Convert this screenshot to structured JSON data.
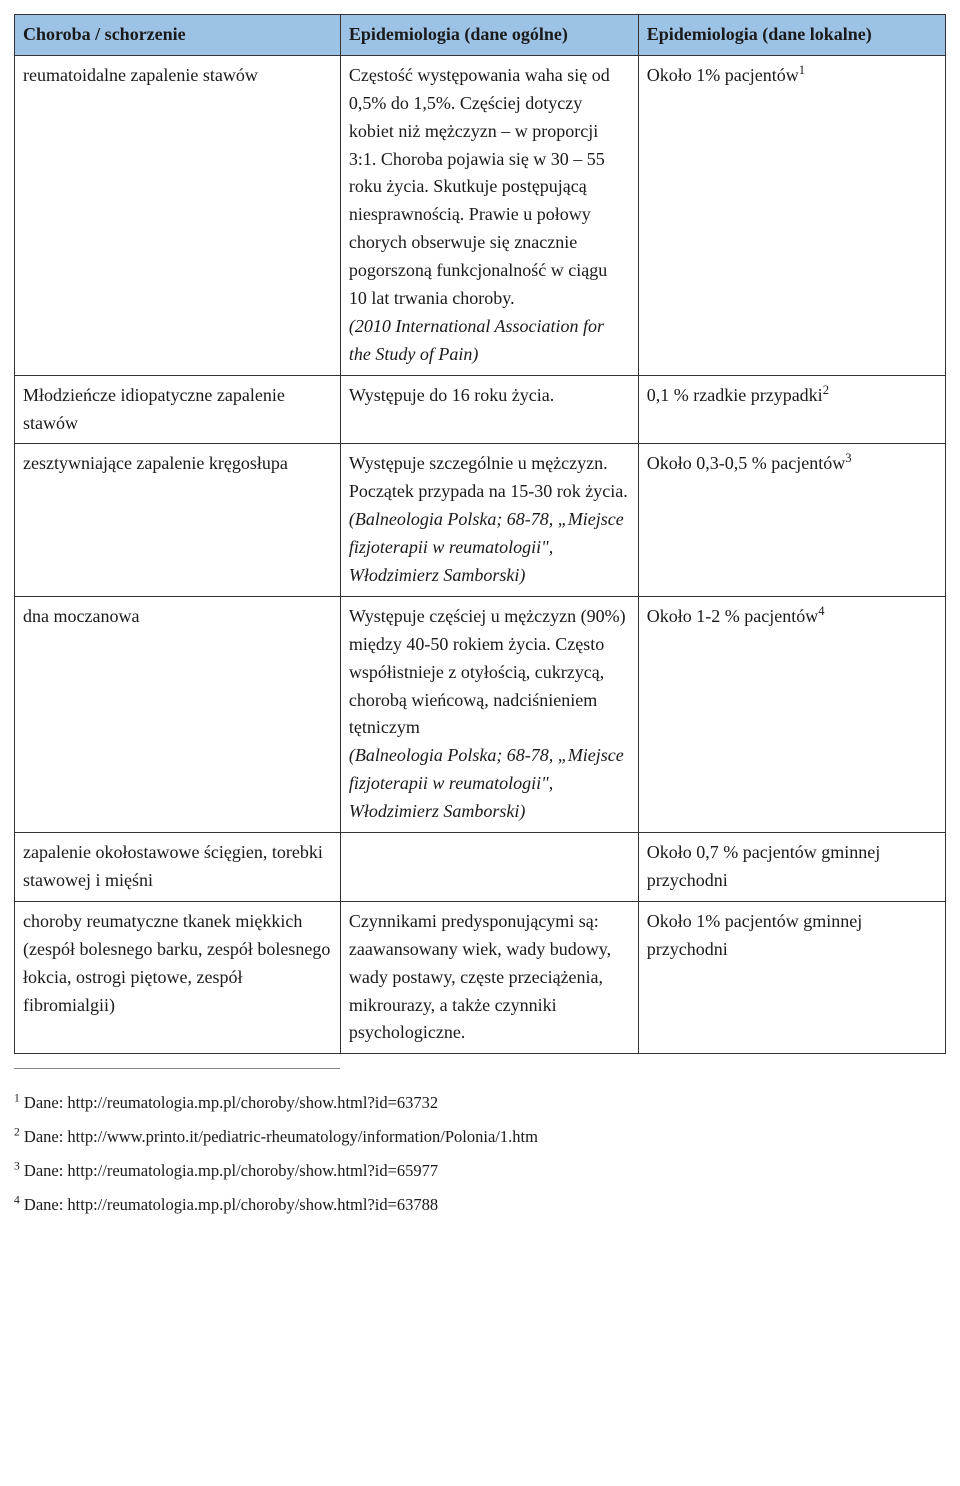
{
  "table": {
    "header_bg": "#9cc2e5",
    "col_widths": [
      "35%",
      "32%",
      "33%"
    ],
    "columns": [
      "Choroba / schorzenie",
      "Epidemiologia (dane ogólne)",
      "Epidemiologia (dane lokalne)"
    ],
    "rows": [
      {
        "c0": "reumatoidalne zapalenie stawów",
        "c1_main": "Częstość występowania waha się od 0,5% do 1,5%. Częściej dotyczy kobiet niż mężczyzn – w proporcji 3:1. Choroba pojawia się w 30 – 55 roku życia. Skutkuje postępującą niesprawnością. Prawie u połowy chorych obserwuje się znacznie pogorszoną funkcjonalność w ciągu 10 lat trwania choroby.",
        "c1_italic": "(2010 International Association for the Study of Pain)",
        "c2_text": "Około 1%  pacjentów",
        "c2_sup": "1"
      },
      {
        "c0": "Młodzieńcze idiopatyczne zapalenie stawów",
        "c1_main": "Występuje do 16 roku życia.",
        "c1_italic": "",
        "c2_text": "0,1 % rzadkie przypadki",
        "c2_sup": "2"
      },
      {
        "c0": "zesztywniające zapalenie kręgosłupa",
        "c1_main": "Występuje szczególnie u mężczyzn. Początek przypada na 15-30 rok życia.",
        "c1_italic": "(Balneologia Polska; 68-78, „Miejsce fizjoterapii w reumatologii\", Włodzimierz Samborski)",
        "c2_text": "Około 0,3-0,5 %  pacjentów",
        "c2_sup": "3"
      },
      {
        "c0": "dna moczanowa",
        "c1_main": "Występuje częściej u mężczyzn (90%) między 40-50 rokiem życia.  Często współistnieje z otyłością, cukrzycą, chorobą wieńcową, nadciśnieniem tętniczym",
        "c1_italic": "(Balneologia Polska; 68-78, „Miejsce fizjoterapii w reumatologii\", Włodzimierz Samborski)",
        "c2_text": "Około  1-2 %  pacjentów",
        "c2_sup": "4"
      },
      {
        "c0": "zapalenie okołostawowe ścięgien, torebki stawowej i mięśni",
        "c1_main": "",
        "c1_italic": "",
        "c2_text": "Około 0,7 %  pacjentów gminnej przychodni",
        "c2_sup": ""
      },
      {
        "c0": "choroby reumatyczne tkanek miękkich (zespół bolesnego barku, zespół bolesnego łokcia, ostrogi piętowe, zespół fibromialgii)",
        "c1_main": "Czynnikami predysponującymi są: zaawansowany wiek, wady budowy, wady postawy, częste przeciążenia, mikrourazy, a także czynniki psychologiczne.",
        "c1_italic": "",
        "c2_text": "Około 1%  pacjentów gminnej przychodni",
        "c2_sup": ""
      }
    ]
  },
  "footnotes": [
    {
      "sup": "1",
      "text": " Dane: http://reumatologia.mp.pl/choroby/show.html?id=63732"
    },
    {
      "sup": "2",
      "text": " Dane: http://www.printo.it/pediatric-rheumatology/information/Polonia/1.htm"
    },
    {
      "sup": "3",
      "text": " Dane: http://reumatologia.mp.pl/choroby/show.html?id=65977"
    },
    {
      "sup": "4",
      "text": " Dane: http://reumatologia.mp.pl/choroby/show.html?id=63788"
    }
  ]
}
